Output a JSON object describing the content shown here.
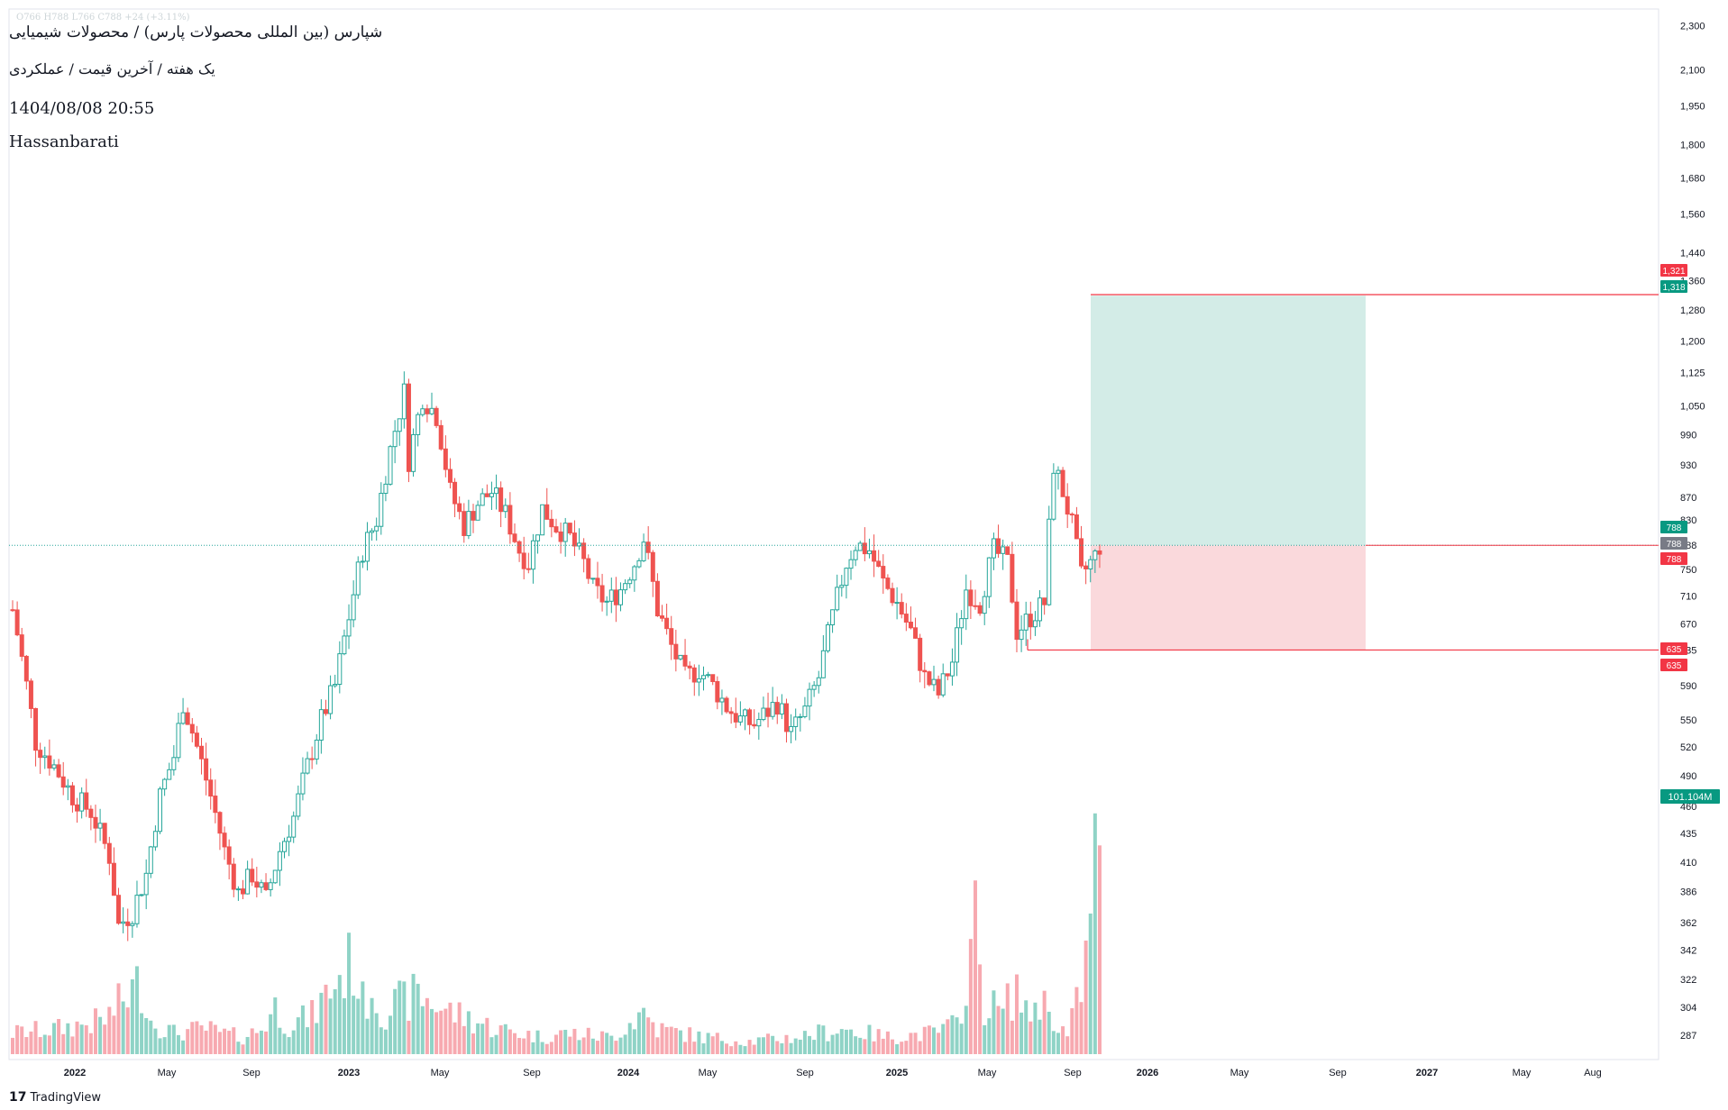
{
  "header": {
    "ohlc": "O766  H788  L766  C788  +24 (+3.11%)",
    "symbol": "شپارس (بین المللی محصولات پارس) / محصولات شیمیایی",
    "subtitle": "یک هفته / آخرین قیمت / عملکردی",
    "datetime": "1404/08/08 20:55",
    "author": "Hassanbarati"
  },
  "brand": {
    "logo": "17",
    "name": "TradingView"
  },
  "colors": {
    "up": "#26a69a",
    "down": "#ef5350",
    "up_fill": "#ffffff",
    "vol_up": "#8fd3c6",
    "vol_down": "#f7a9b0",
    "target_zone": "#d3ece7",
    "stop_zone": "#fad9dc",
    "axis_text": "#131722",
    "grid": "#f0f3fa"
  },
  "chart_data": {
    "type": "candlestick",
    "scale": "log",
    "timeframe": "1W",
    "y_ticks": [
      287,
      304,
      322,
      342,
      362,
      386,
      410,
      435,
      460,
      490,
      520,
      550,
      590,
      635,
      670,
      710,
      750,
      788,
      830,
      870,
      930,
      990,
      1050,
      1125,
      1200,
      1280,
      1360,
      1440,
      1560,
      1680,
      1800,
      1950,
      2100,
      2300
    ],
    "y_tick_labels": [
      "287",
      "304",
      "322",
      "342",
      "362",
      "386",
      "410",
      "435",
      "460",
      "490",
      "520",
      "550",
      "590",
      "635",
      "670",
      "710",
      "750",
      "788",
      "830",
      "870",
      "930",
      "990",
      "1,050",
      "1,125",
      "1,200",
      "1,280",
      "1,360",
      "1,440",
      "1,560",
      "1,680",
      "1,800",
      "1,950",
      "2,100",
      "2,300"
    ],
    "x_labels": [
      "2022",
      "May",
      "Sep",
      "2023",
      "May",
      "Sep",
      "2024",
      "May",
      "Sep",
      "2025",
      "May",
      "Sep",
      "2026",
      "May",
      "Sep",
      "2027",
      "May",
      "Aug"
    ],
    "x_bold_labels": [
      "2022",
      "2023",
      "2024",
      "2025",
      "2026",
      "2027"
    ],
    "price_badges": [
      {
        "value": 1321,
        "label": "1,321",
        "color": "#f23645"
      },
      {
        "value": 1318,
        "label": "1,318",
        "color": "#089981"
      },
      {
        "value": 788,
        "label": "788",
        "color": "#089981"
      },
      {
        "value": 788,
        "label": "788",
        "color": "#787b86"
      },
      {
        "value": 788,
        "label": "788",
        "color": "#f23645"
      },
      {
        "value": 635,
        "label": "635",
        "color": "#f23645"
      },
      {
        "value": 635,
        "label": "635",
        "color": "#f23645"
      }
    ],
    "volume_badge": "101.104M",
    "last_price": 788,
    "position": {
      "entry": 788,
      "target": 1318,
      "stop": 635
    },
    "horizontal_line": 1321,
    "stop_line": 635,
    "close_path": [
      [
        0,
        690
      ],
      [
        5,
        525
      ],
      [
        9,
        500
      ],
      [
        13,
        470
      ],
      [
        17,
        455
      ],
      [
        21,
        415
      ],
      [
        23,
        360
      ],
      [
        26,
        370
      ],
      [
        29,
        400
      ],
      [
        32,
        470
      ],
      [
        35,
        510
      ],
      [
        37,
        570
      ],
      [
        40,
        520
      ],
      [
        43,
        470
      ],
      [
        46,
        420
      ],
      [
        49,
        385
      ],
      [
        52,
        400
      ],
      [
        55,
        380
      ],
      [
        58,
        420
      ],
      [
        61,
        450
      ],
      [
        64,
        500
      ],
      [
        67,
        550
      ],
      [
        70,
        590
      ],
      [
        73,
        680
      ],
      [
        76,
        780
      ],
      [
        79,
        830
      ],
      [
        82,
        960
      ],
      [
        85,
        1080
      ],
      [
        86,
        940
      ],
      [
        89,
        1070
      ],
      [
        92,
        1030
      ],
      [
        95,
        880
      ],
      [
        98,
        820
      ],
      [
        101,
        860
      ],
      [
        104,
        880
      ],
      [
        107,
        840
      ],
      [
        110,
        780
      ],
      [
        112,
        760
      ],
      [
        115,
        850
      ],
      [
        118,
        820
      ],
      [
        121,
        800
      ],
      [
        124,
        760
      ],
      [
        126,
        720
      ],
      [
        129,
        700
      ],
      [
        132,
        720
      ],
      [
        135,
        760
      ],
      [
        137,
        800
      ],
      [
        140,
        690
      ],
      [
        143,
        640
      ],
      [
        146,
        600
      ],
      [
        149,
        610
      ],
      [
        152,
        590
      ],
      [
        155,
        565
      ],
      [
        158,
        550
      ],
      [
        161,
        545
      ],
      [
        164,
        560
      ],
      [
        166,
        570
      ],
      [
        169,
        535
      ],
      [
        172,
        560
      ],
      [
        175,
        600
      ],
      [
        178,
        680
      ],
      [
        181,
        760
      ],
      [
        183,
        790
      ],
      [
        186,
        780
      ],
      [
        189,
        730
      ],
      [
        192,
        700
      ],
      [
        195,
        660
      ],
      [
        198,
        600
      ],
      [
        201,
        580
      ],
      [
        204,
        620
      ],
      [
        207,
        720
      ],
      [
        210,
        700
      ],
      [
        213,
        780
      ],
      [
        216,
        760
      ],
      [
        218,
        660
      ],
      [
        221,
        680
      ],
      [
        224,
        700
      ],
      [
        226,
        930
      ],
      [
        228,
        880
      ],
      [
        230,
        820
      ],
      [
        232,
        740
      ],
      [
        235,
        770
      ],
      [
        236,
        788
      ]
    ],
    "volume_path": [
      [
        0,
        0.05
      ],
      [
        10,
        0.06
      ],
      [
        20,
        0.08
      ],
      [
        25,
        0.14
      ],
      [
        28,
        0.17
      ],
      [
        30,
        0.08
      ],
      [
        35,
        0.05
      ],
      [
        42,
        0.06
      ],
      [
        45,
        0.05
      ],
      [
        50,
        0.04
      ],
      [
        54,
        0.06
      ],
      [
        57,
        0.11
      ],
      [
        60,
        0.07
      ],
      [
        65,
        0.09
      ],
      [
        70,
        0.17
      ],
      [
        74,
        0.22
      ],
      [
        76,
        0.12
      ],
      [
        78,
        0.16
      ],
      [
        80,
        0.1
      ],
      [
        84,
        0.12
      ],
      [
        88,
        0.14
      ],
      [
        95,
        0.1
      ],
      [
        100,
        0.08
      ],
      [
        105,
        0.06
      ],
      [
        110,
        0.05
      ],
      [
        115,
        0.04
      ],
      [
        120,
        0.05
      ],
      [
        130,
        0.04
      ],
      [
        137,
        0.1
      ],
      [
        140,
        0.06
      ],
      [
        150,
        0.04
      ],
      [
        160,
        0.03
      ],
      [
        170,
        0.04
      ],
      [
        180,
        0.06
      ],
      [
        190,
        0.04
      ],
      [
        200,
        0.05
      ],
      [
        205,
        0.07
      ],
      [
        209,
        0.3
      ],
      [
        211,
        0.12
      ],
      [
        215,
        0.1
      ],
      [
        218,
        0.16
      ],
      [
        220,
        0.09
      ],
      [
        223,
        0.13
      ],
      [
        226,
        0.09
      ],
      [
        229,
        0.04
      ],
      [
        232,
        0.16
      ],
      [
        234,
        0.29
      ],
      [
        236,
        0.62
      ]
    ]
  }
}
